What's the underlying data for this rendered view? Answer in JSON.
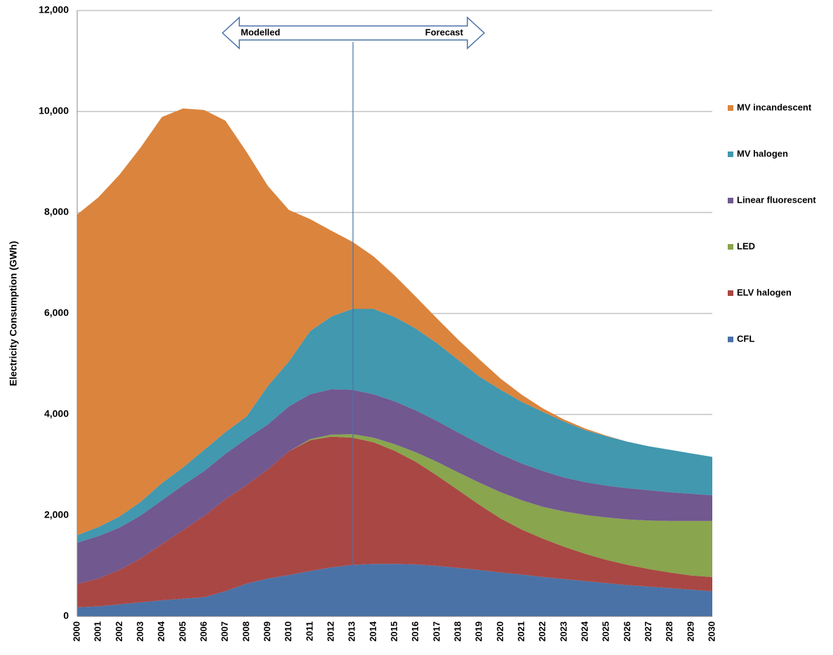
{
  "chart_data": {
    "type": "stacked-area",
    "y_label": "Electricity Consumption (GWh)",
    "annotations": [
      "Modelled",
      "Forecast"
    ],
    "categories": [
      "2000",
      "2001",
      "2002",
      "2003",
      "2004",
      "2005",
      "2006",
      "2007",
      "2008",
      "2009",
      "2010",
      "2011",
      "2012",
      "2013",
      "2014",
      "2015",
      "2016",
      "2017",
      "2018",
      "2019",
      "2020",
      "2021",
      "2022",
      "2023",
      "2024",
      "2025",
      "2026",
      "2027",
      "2028",
      "2029",
      "2030"
    ],
    "series": [
      {
        "name": "CFL",
        "color": "#4a72a6",
        "values": [
          180,
          200,
          240,
          280,
          320,
          350,
          380,
          500,
          650,
          750,
          820,
          900,
          970,
          1020,
          1040,
          1040,
          1030,
          1000,
          960,
          920,
          870,
          830,
          780,
          740,
          700,
          660,
          620,
          590,
          560,
          530,
          500
        ]
      },
      {
        "name": "ELV halogen",
        "color": "#a94744",
        "values": [
          460,
          550,
          680,
          870,
          1110,
          1360,
          1610,
          1820,
          1950,
          2160,
          2450,
          2590,
          2590,
          2520,
          2410,
          2240,
          2030,
          1790,
          1540,
          1290,
          1070,
          890,
          760,
          640,
          540,
          460,
          400,
          350,
          310,
          280,
          280
        ]
      },
      {
        "name": "LED",
        "color": "#89a54e",
        "values": [
          0,
          0,
          0,
          0,
          0,
          0,
          0,
          0,
          0,
          0,
          0,
          20,
          40,
          70,
          90,
          130,
          190,
          270,
          350,
          440,
          520,
          580,
          630,
          700,
          770,
          840,
          900,
          960,
          1020,
          1080,
          1110
        ]
      },
      {
        "name": "Linear fluorescent",
        "color": "#71588f",
        "values": [
          820,
          840,
          840,
          850,
          870,
          890,
          890,
          900,
          920,
          890,
          890,
          890,
          900,
          880,
          860,
          850,
          830,
          810,
          790,
          770,
          750,
          730,
          710,
          670,
          650,
          630,
          620,
          600,
          570,
          540,
          510
        ]
      },
      {
        "name": "MV halogen",
        "color": "#4198af",
        "values": [
          150,
          180,
          220,
          270,
          340,
          350,
          420,
          430,
          440,
          760,
          890,
          1250,
          1440,
          1600,
          1690,
          1670,
          1620,
          1540,
          1440,
          1330,
          1280,
          1220,
          1170,
          1110,
          1030,
          980,
          920,
          870,
          840,
          800,
          760
        ]
      },
      {
        "name": "MV incandescent",
        "color": "#db843d",
        "values": [
          6350,
          6530,
          6770,
          7020,
          7250,
          7110,
          6730,
          6170,
          5240,
          3970,
          3000,
          2220,
          1700,
          1330,
          1040,
          820,
          630,
          490,
          400,
          340,
          220,
          140,
          70,
          40,
          30,
          10,
          0,
          0,
          0,
          0,
          0
        ]
      }
    ],
    "ylim": [
      0,
      12000
    ],
    "yticks": [
      0,
      {
        "value": 2000,
        "label": "2,000"
      },
      {
        "value": 4000,
        "label": "4,000"
      },
      {
        "value": 6000,
        "label": "6,000"
      },
      {
        "value": 8000,
        "label": "8,000"
      },
      {
        "value": 10000,
        "label": "10,000"
      },
      {
        "value": 12000,
        "label": "12,000"
      }
    ],
    "grid": true,
    "legend": "right"
  }
}
